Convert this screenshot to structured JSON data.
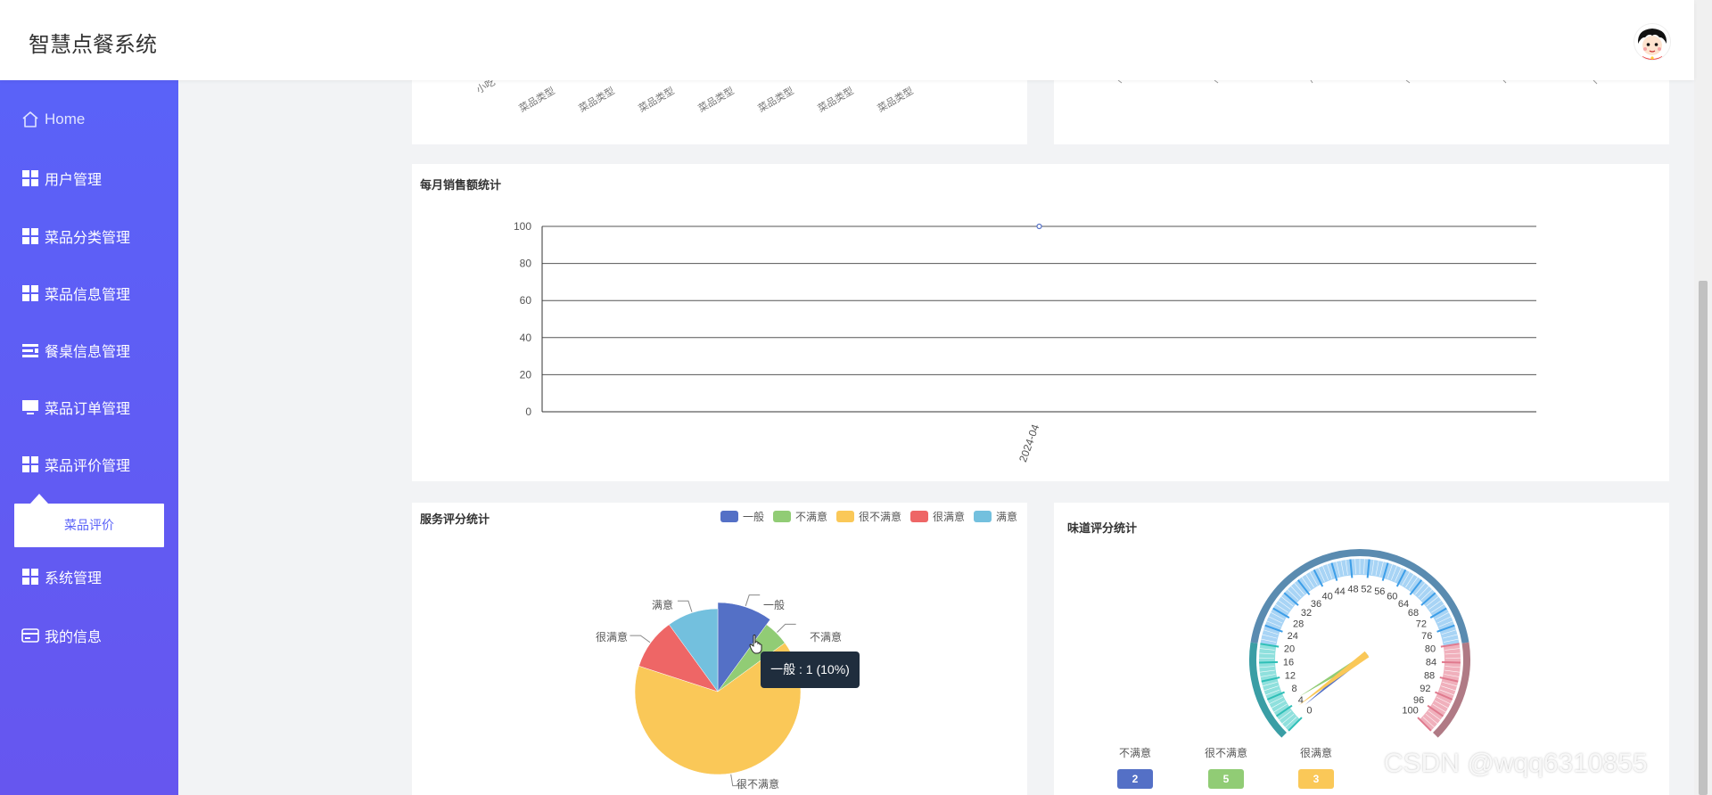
{
  "app": {
    "title": "智慧点餐系统"
  },
  "nav": [
    {
      "label": "Home",
      "icon": "home-icon"
    },
    {
      "label": "用户管理",
      "icon": "grid-icon"
    },
    {
      "label": "菜品分类管理",
      "icon": "grid-icon"
    },
    {
      "label": "菜品信息管理",
      "icon": "grid-icon"
    },
    {
      "label": "餐桌信息管理",
      "icon": "list-icon"
    },
    {
      "label": "菜品订单管理",
      "icon": "monitor-icon"
    },
    {
      "label": "菜品评价管理",
      "icon": "grid-icon"
    },
    {
      "label": "系统管理",
      "icon": "grid-icon"
    },
    {
      "label": "我的信息",
      "icon": "card-icon"
    }
  ],
  "submenu": {
    "active": "菜品评价"
  },
  "top_card": {
    "tick_labels": [
      "小吃",
      "菜品类型",
      "菜品类型",
      "菜品类型",
      "菜品类型",
      "菜品类型",
      "菜品类型",
      "菜品类型"
    ]
  },
  "sales": {
    "title": "每月销售额统计",
    "chart_data": {
      "type": "line",
      "categories": [
        "2024-04"
      ],
      "series": [
        {
          "values": [
            100
          ]
        }
      ],
      "ylim": [
        0,
        100
      ],
      "yticks": [
        0,
        20,
        40,
        60,
        80,
        100
      ],
      "grid": true
    }
  },
  "service": {
    "title": "服务评分统计",
    "chart_data": {
      "type": "pie",
      "legend_position": "top-right",
      "slices": [
        {
          "label": "一般",
          "value": 1,
          "color": "#5470c6"
        },
        {
          "label": "不满意",
          "value": 0.5,
          "color": "#91cc75"
        },
        {
          "label": "很不满意",
          "value": 6.5,
          "color": "#fac858"
        },
        {
          "label": "很满意",
          "value": 1,
          "color": "#ee6666"
        },
        {
          "label": "满意",
          "value": 1,
          "color": "#73c0de"
        }
      ]
    },
    "tooltip": "一般 : 1 (10%)"
  },
  "taste": {
    "title": "味道评分统计",
    "chart_data": {
      "type": "gauge",
      "min": 0,
      "max": 100,
      "ticks": [
        0,
        4,
        8,
        12,
        16,
        20,
        24,
        28,
        32,
        36,
        40,
        44,
        48,
        52,
        56,
        60,
        64,
        68,
        72,
        76,
        80,
        84,
        88,
        92,
        96,
        100
      ],
      "series": [
        {
          "name": "不满意",
          "value": 2,
          "color": "#5470c6"
        },
        {
          "name": "很不满意",
          "value": 5,
          "color": "#91cc75"
        },
        {
          "name": "很满意",
          "value": 3,
          "color": "#fac858"
        }
      ]
    }
  },
  "watermark": "CSDN @wqq6310855"
}
